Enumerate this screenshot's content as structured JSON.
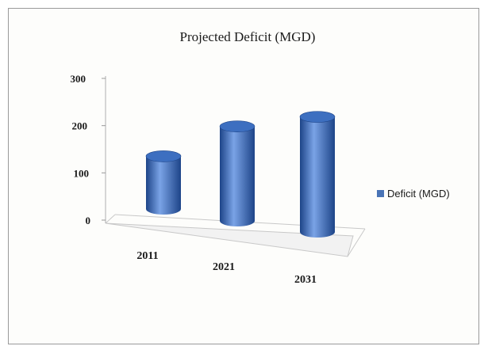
{
  "chart_data": {
    "type": "bar",
    "title": "Projected Deficit (MGD)",
    "categories": [
      "2011",
      "2021",
      "2031"
    ],
    "series": [
      {
        "name": "Deficit (MGD)",
        "values": [
          120,
          215,
          262
        ]
      }
    ],
    "ylim": [
      0,
      300
    ],
    "yticks": [
      "0",
      "100",
      "200",
      "300"
    ],
    "grid": false,
    "legend": "right",
    "style": "3d-cylinder"
  },
  "colors": {
    "bar": "#3d6fc0",
    "bar_dark": "#1d4488",
    "bar_light": "#7aa3e6",
    "legend_marker": "#4a74b6"
  }
}
